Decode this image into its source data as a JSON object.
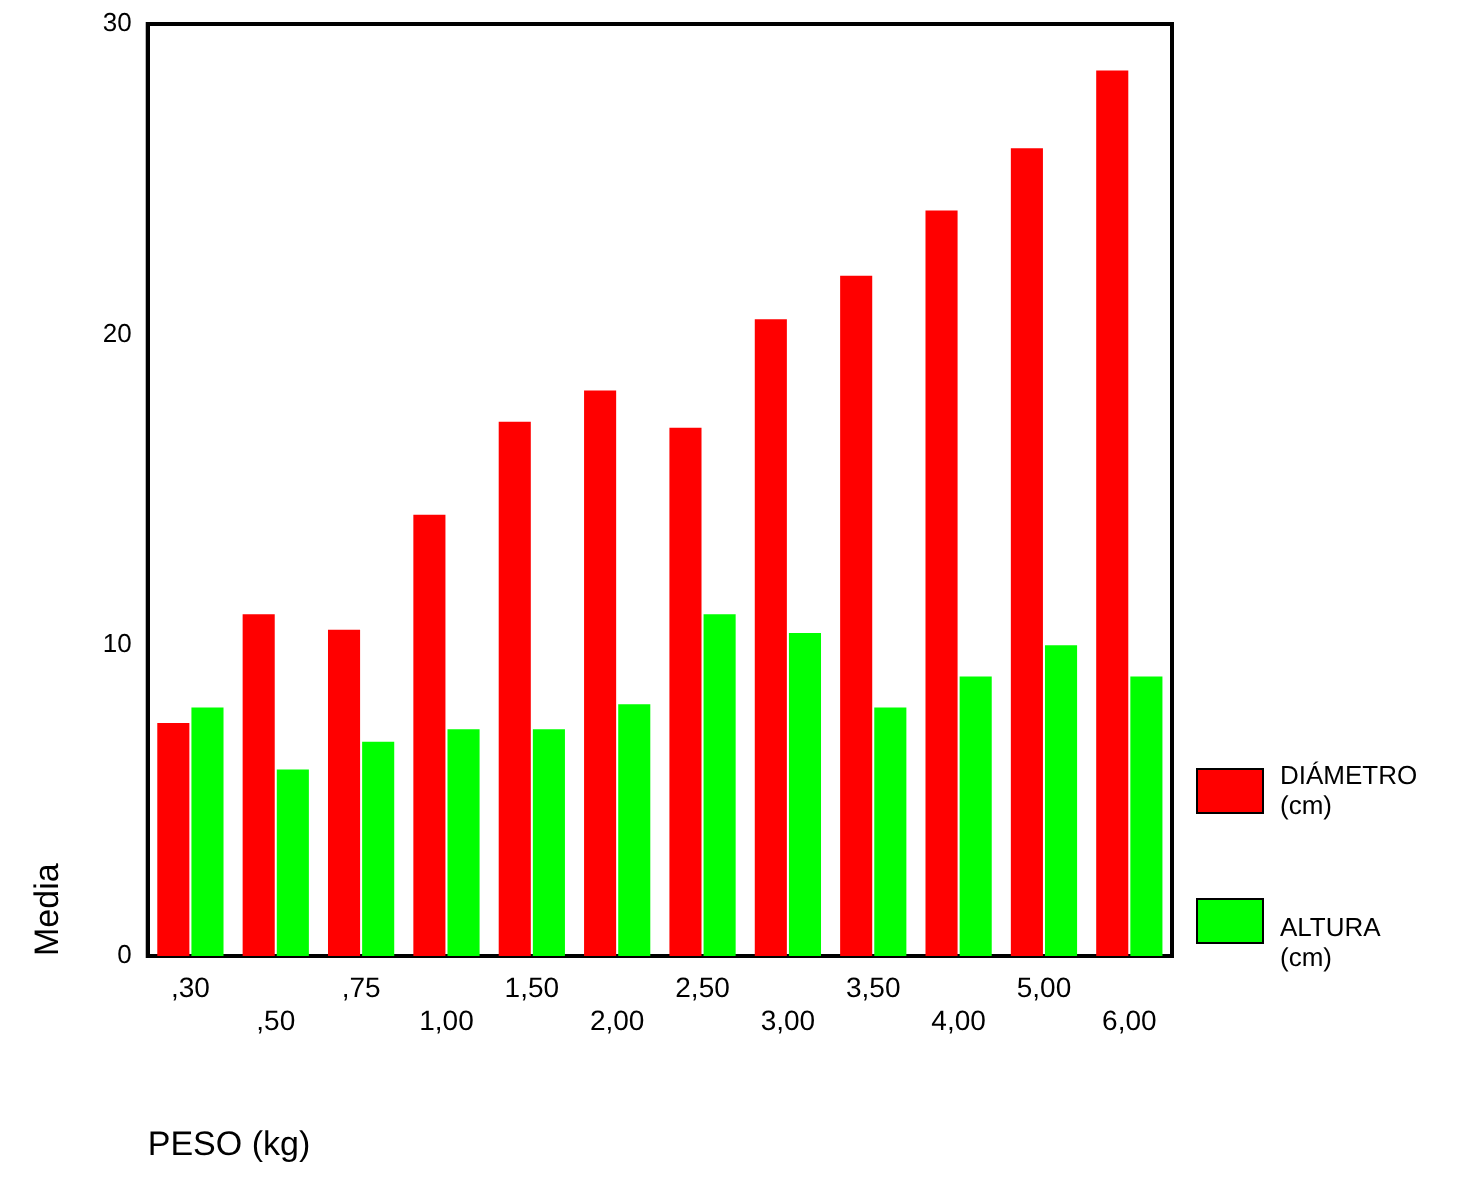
{
  "chart_data": {
    "type": "bar",
    "xlabel": "PESO (kg)",
    "ylabel": "Media",
    "categories": [
      ",30",
      ",50",
      ",75",
      "1,00",
      "1,50",
      "2,00",
      "2,50",
      "3,00",
      "3,50",
      "4,00",
      "5,00",
      "6,00"
    ],
    "series": [
      {
        "name": "DIÁMETRO (cm)",
        "color": "#ff0000",
        "values": [
          7.5,
          11.0,
          10.5,
          14.2,
          17.2,
          18.2,
          17.0,
          20.5,
          21.9,
          24.0,
          26.0,
          28.5
        ]
      },
      {
        "name": "ALTURA (cm)",
        "color": "#00ff00",
        "values": [
          8.0,
          6.0,
          6.9,
          7.3,
          7.3,
          8.1,
          11.0,
          10.4,
          8.0,
          9.0,
          10.0,
          9.0
        ]
      }
    ],
    "ylim": [
      0,
      30
    ],
    "yticks": [
      0,
      10,
      20,
      30
    ],
    "grid": false,
    "legend": "right"
  }
}
